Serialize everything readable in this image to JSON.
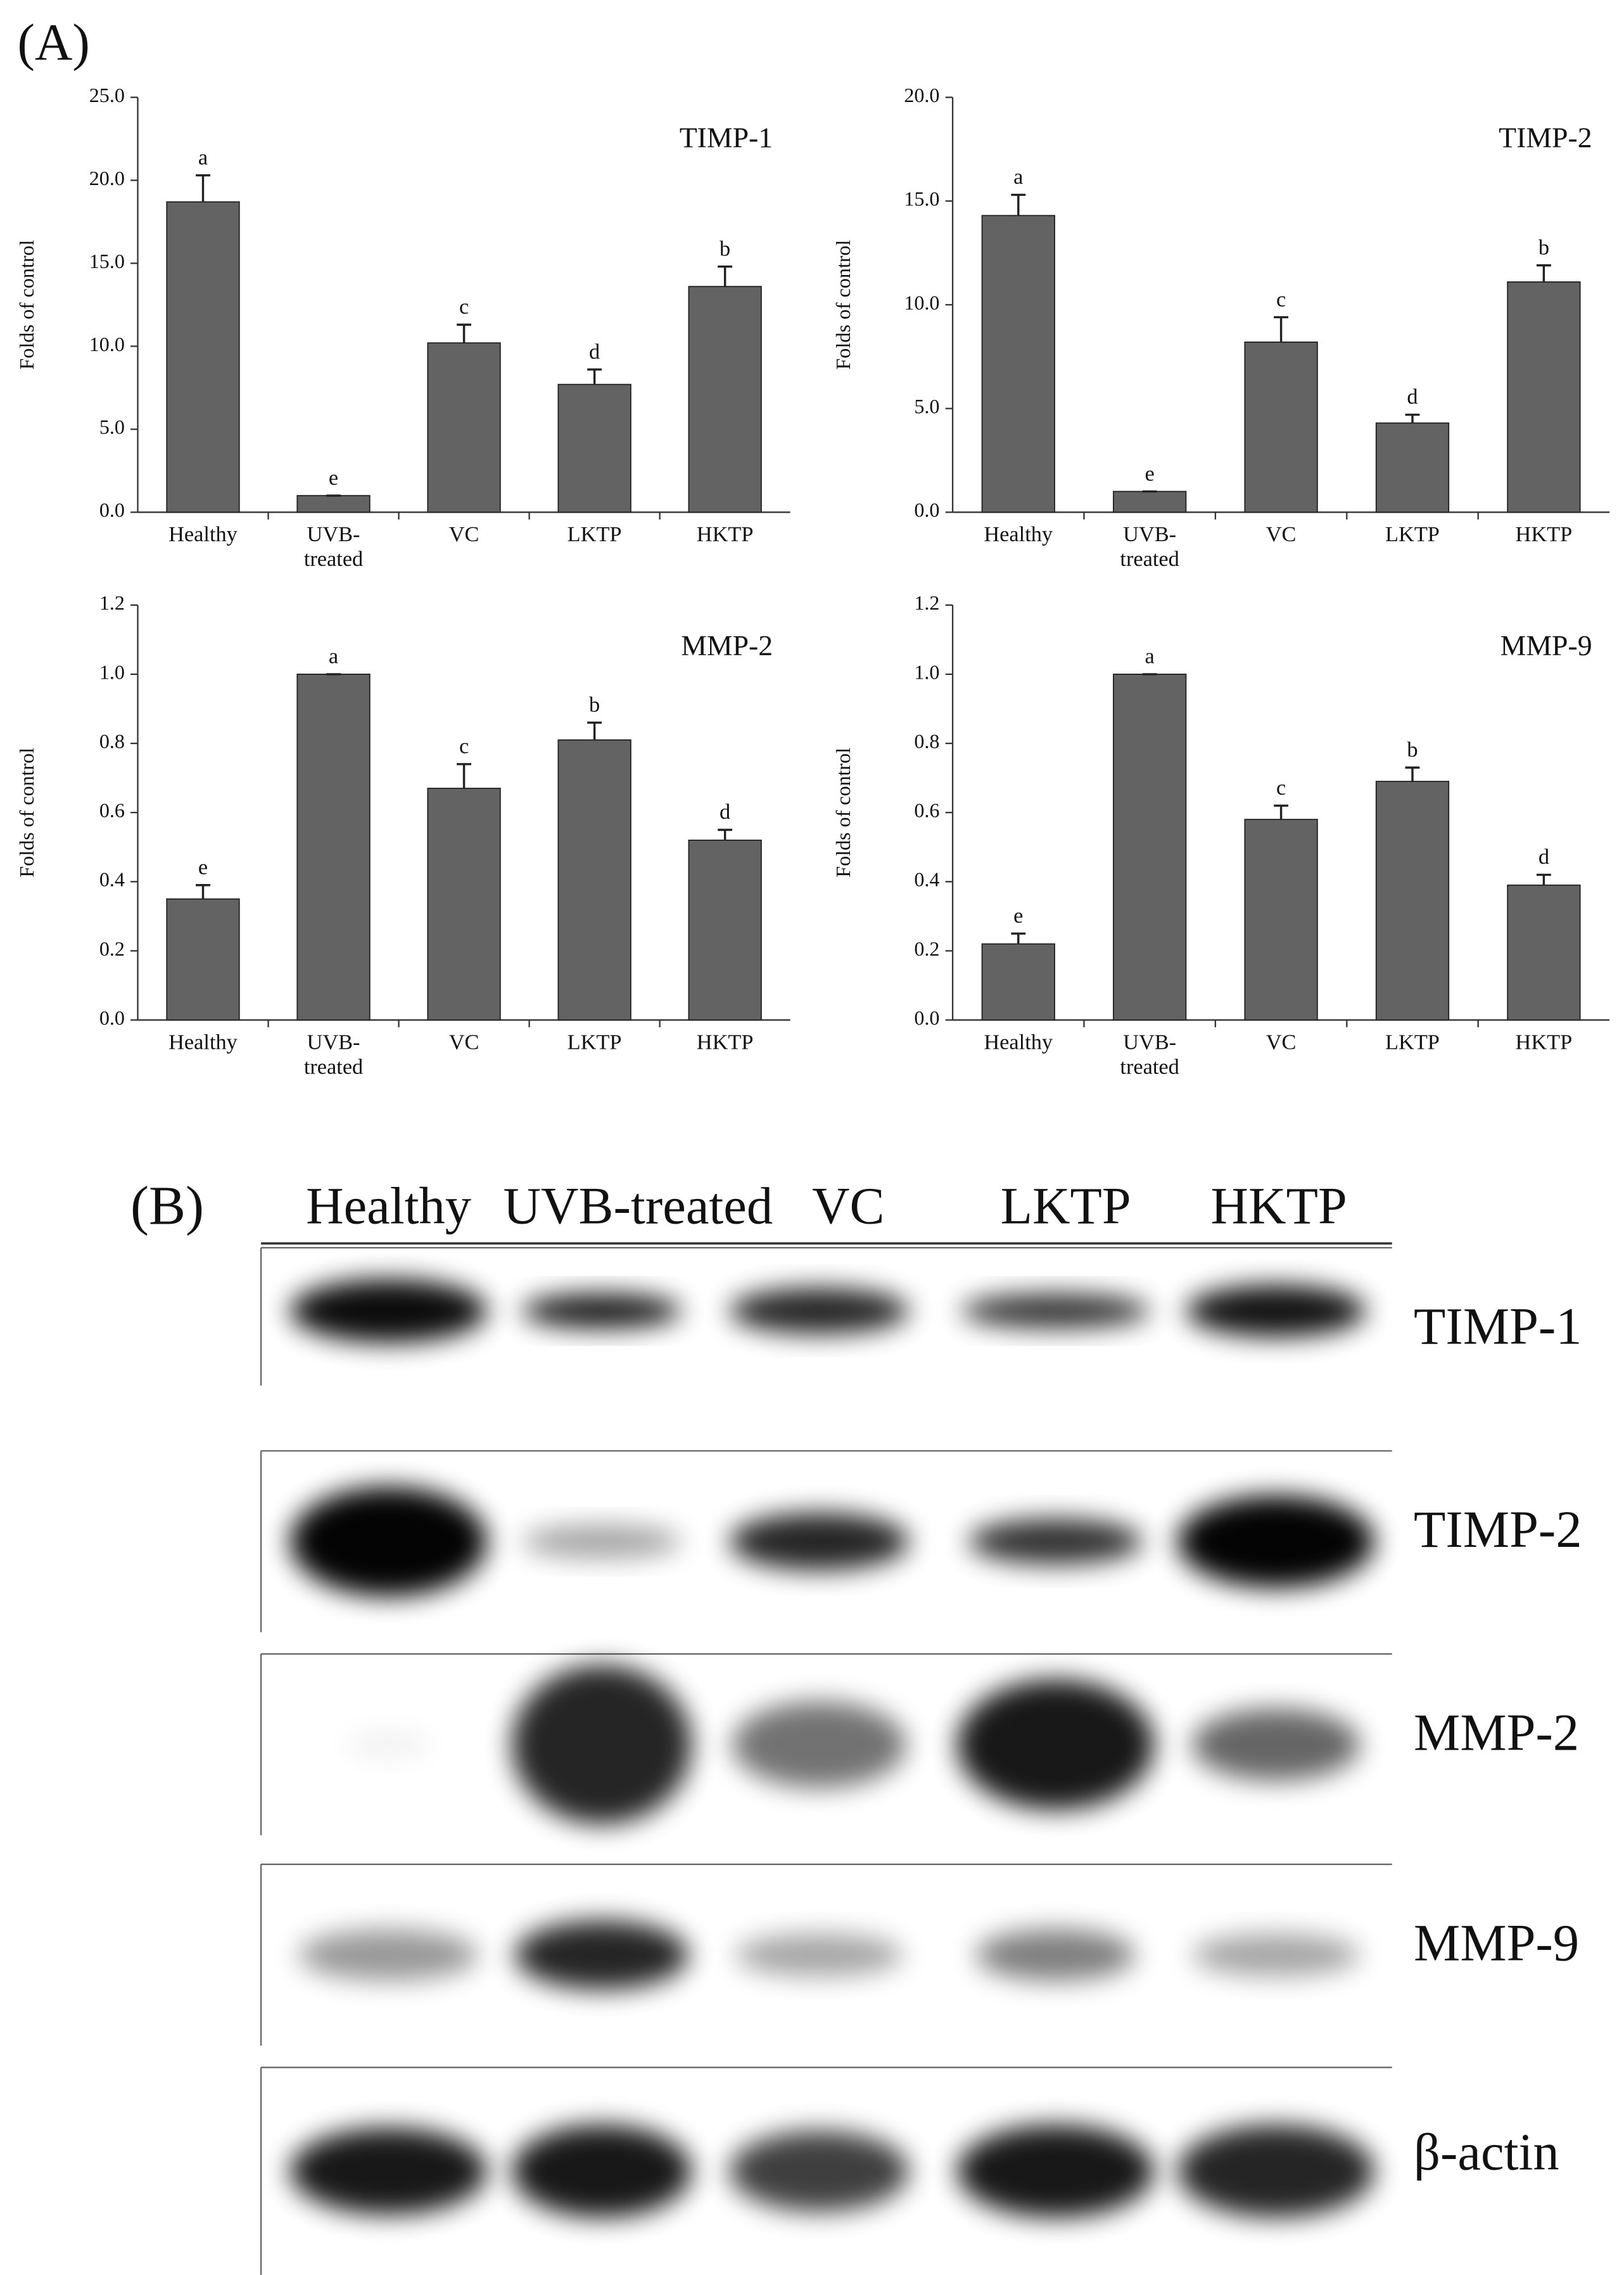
{
  "panel_a_label": "(A)",
  "chart_data": [
    {
      "type": "bar",
      "title": "TIMP-1",
      "y_label": "Folds of control",
      "color": "#636363",
      "categories": [
        "Healthy",
        "UVB-treated",
        "VC",
        "LKTP",
        "HKTP"
      ],
      "values": [
        18.7,
        1.0,
        10.2,
        7.7,
        13.6
      ],
      "errors": [
        1.6,
        0,
        1.1,
        0.9,
        1.2
      ],
      "significance_letters": [
        "a",
        "e",
        "c",
        "d",
        "b"
      ],
      "ylim": [
        0,
        25
      ],
      "yticks": [
        {
          "value": 0,
          "label": "0.0"
        },
        {
          "value": 5,
          "label": "5.0"
        },
        {
          "value": 10,
          "label": "10.0"
        },
        {
          "value": 15,
          "label": "15.0"
        },
        {
          "value": 20,
          "label": "20.0"
        },
        {
          "value": 25,
          "label": "25.0"
        }
      ]
    },
    {
      "type": "bar",
      "title": "TIMP-2",
      "y_label": "Folds of control",
      "color": "#636363",
      "categories": [
        "Healthy",
        "UVB-treated",
        "VC",
        "LKTP",
        "HKTP"
      ],
      "values": [
        14.3,
        1.0,
        8.2,
        4.3,
        11.1
      ],
      "errors": [
        1.0,
        0,
        1.2,
        0.4,
        0.8
      ],
      "significance_letters": [
        "a",
        "e",
        "c",
        "d",
        "b"
      ],
      "ylim": [
        0,
        20
      ],
      "yticks": [
        {
          "value": 0,
          "label": "0.0"
        },
        {
          "value": 5,
          "label": "5.0"
        },
        {
          "value": 10,
          "label": "10.0"
        },
        {
          "value": 15,
          "label": "15.0"
        },
        {
          "value": 20,
          "label": "20.0"
        }
      ]
    },
    {
      "type": "bar",
      "title": "MMP-2",
      "y_label": "Folds of control",
      "color": "#636363",
      "categories": [
        "Healthy",
        "UVB-treated",
        "VC",
        "LKTP",
        "HKTP"
      ],
      "values": [
        0.35,
        1.0,
        0.67,
        0.81,
        0.52
      ],
      "errors": [
        0.04,
        0,
        0.07,
        0.05,
        0.03
      ],
      "significance_letters": [
        "e",
        "a",
        "c",
        "b",
        "d"
      ],
      "ylim": [
        0,
        1.2
      ],
      "yticks": [
        {
          "value": 0,
          "label": "0.0"
        },
        0.2,
        0.4,
        0.6,
        0.8,
        {
          "value": 1,
          "label": "1.0"
        },
        1.2
      ]
    },
    {
      "type": "bar",
      "title": "MMP-9",
      "y_label": "Folds of control",
      "color": "#636363",
      "categories": [
        "Healthy",
        "UVB-treated",
        "VC",
        "LKTP",
        "HKTP"
      ],
      "values": [
        0.22,
        1.0,
        0.58,
        0.69,
        0.39
      ],
      "errors": [
        0.03,
        0,
        0.04,
        0.04,
        0.03
      ],
      "significance_letters": [
        "e",
        "a",
        "c",
        "b",
        "d"
      ],
      "ylim": [
        0,
        1.2
      ],
      "yticks": [
        {
          "value": 0,
          "label": "0.0"
        },
        0.2,
        0.4,
        0.6,
        0.8,
        {
          "value": 1,
          "label": "1.0"
        },
        1.2
      ]
    }
  ],
  "blot": {
    "label": "(B)",
    "lanes": [
      "Healthy",
      "UVB-treated",
      "VC",
      "LKTP",
      "HKTP"
    ],
    "proteins": [
      "TIMP-1",
      "TIMP-2",
      "MMP-2",
      "MMP-9",
      "β-actin"
    ]
  }
}
